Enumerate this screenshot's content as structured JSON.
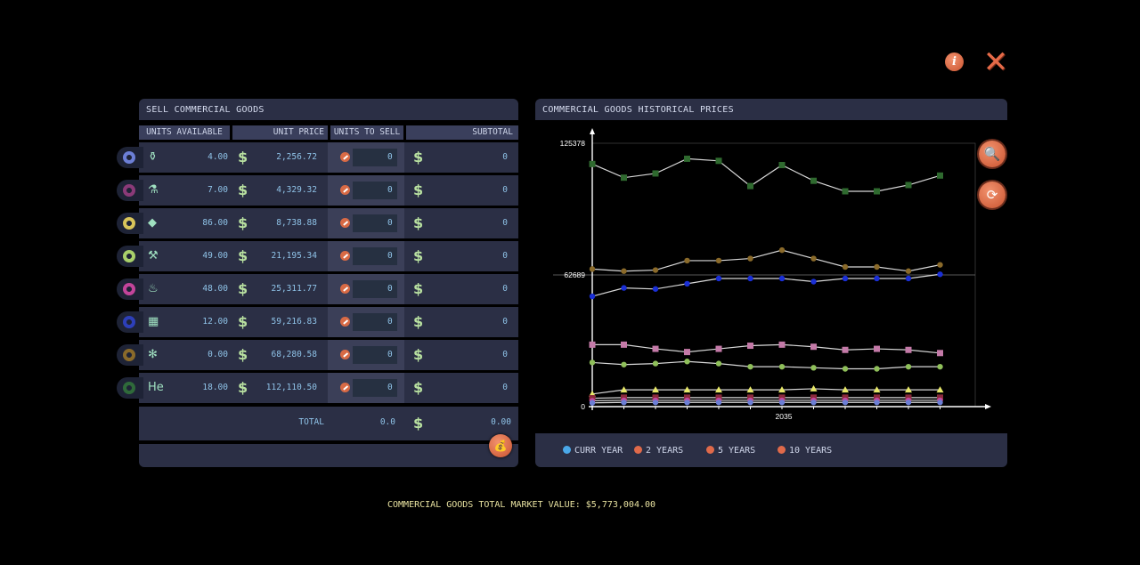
{
  "top_icons": {
    "info": "i",
    "close": "✕"
  },
  "sell_panel": {
    "title": "SELL COMMERCIAL GOODS",
    "headers": {
      "units_available": "UNITS AVAILABLE",
      "unit_price": "UNIT PRICE",
      "units_to_sell": "UNITS TO SELL",
      "subtotal": "SUBTOTAL"
    },
    "currency_symbol": "$",
    "rows": [
      {
        "tab_color": "#6c7fd6",
        "icon": "bottle-icon",
        "glyph": "⚱",
        "units": "4.00",
        "price": "2,256.72",
        "to_sell": "0",
        "subtotal": "0"
      },
      {
        "tab_color": "#8a3a78",
        "icon": "flask-icon",
        "glyph": "⚗",
        "units": "7.00",
        "price": "4,329.32",
        "to_sell": "0",
        "subtotal": "0"
      },
      {
        "tab_color": "#d8c45a",
        "icon": "gem-icon",
        "glyph": "◆",
        "units": "86.00",
        "price": "8,738.88",
        "to_sell": "0",
        "subtotal": "0"
      },
      {
        "tab_color": "#a8d06a",
        "icon": "microscope-icon",
        "glyph": "⚒",
        "units": "49.00",
        "price": "21,195.34",
        "to_sell": "0",
        "subtotal": "0"
      },
      {
        "tab_color": "#c2449a",
        "icon": "spray-icon",
        "glyph": "♨",
        "units": "48.00",
        "price": "25,311.77",
        "to_sell": "0",
        "subtotal": "0"
      },
      {
        "tab_color": "#2d3fb8",
        "icon": "chip-icon",
        "glyph": "▦",
        "units": "12.00",
        "price": "59,216.83",
        "to_sell": "0",
        "subtotal": "0"
      },
      {
        "tab_color": "#8a6a2a",
        "icon": "molecule-icon",
        "glyph": "✻",
        "units": "0.00",
        "price": "68,280.58",
        "to_sell": "0",
        "subtotal": "0"
      },
      {
        "tab_color": "#2f6a3a",
        "icon": "element-icon",
        "glyph": "He",
        "units": "18.00",
        "price": "112,110.50",
        "to_sell": "0",
        "subtotal": "0"
      }
    ],
    "total_label": "TOTAL",
    "total_units": "0.0",
    "total_value": "0.00"
  },
  "chart_panel": {
    "title": "COMMERCIAL GOODS HISTORICAL PRICES",
    "legend": [
      {
        "label": "CURR YEAR",
        "color": "#4aa8e8"
      },
      {
        "label": "2 YEARS",
        "color": "#e06a4a"
      },
      {
        "label": "5 YEARS",
        "color": "#e06a4a"
      },
      {
        "label": "10 YEARS",
        "color": "#e06a4a"
      }
    ]
  },
  "chart_data": {
    "type": "line",
    "ylim": [
      0,
      125378
    ],
    "y_ticks": [
      "125378",
      "62689",
      "0"
    ],
    "x_tick_label": "2035",
    "x": [
      1,
      2,
      3,
      4,
      5,
      6,
      7,
      8,
      9,
      10,
      11,
      12
    ],
    "series": [
      {
        "color": "#2f6a2f",
        "marker": "square",
        "values": [
          115500,
          109000,
          111000,
          118000,
          117000,
          105000,
          115000,
          107500,
          102500,
          102500,
          105500,
          110000
        ]
      },
      {
        "color": "#8a6a2a",
        "marker": "circle",
        "values": [
          65500,
          64500,
          65000,
          69500,
          69500,
          70500,
          74500,
          70500,
          66500,
          66500,
          64500,
          67500
        ]
      },
      {
        "color": "#1a2fd6",
        "marker": "circle",
        "values": [
          52500,
          56500,
          56000,
          58500,
          61000,
          61000,
          61000,
          59500,
          61000,
          61000,
          61000,
          63000
        ]
      },
      {
        "color": "#c47aa8",
        "marker": "square",
        "values": [
          29500,
          29500,
          27500,
          26000,
          27500,
          29000,
          29500,
          28500,
          27000,
          27500,
          27000,
          25500
        ]
      },
      {
        "color": "#8fbf5a",
        "marker": "circle",
        "values": [
          21000,
          20000,
          20500,
          21500,
          20500,
          19000,
          19000,
          18500,
          18000,
          18000,
          19000,
          19000
        ]
      },
      {
        "color": "#e8e86a",
        "marker": "triangle",
        "values": [
          6000,
          8000,
          8000,
          8000,
          8000,
          8000,
          8000,
          8500,
          8000,
          8000,
          8000,
          8000
        ]
      },
      {
        "color": "#8a2a3a",
        "marker": "square",
        "values": [
          4000,
          4300,
          4300,
          4300,
          4300,
          4300,
          4300,
          4300,
          4300,
          4300,
          4300,
          4300
        ]
      },
      {
        "color": "#c2449a",
        "marker": "circle",
        "values": [
          2800,
          3000,
          3000,
          3000,
          3000,
          3000,
          3000,
          3000,
          3000,
          3000,
          3000,
          3000
        ]
      },
      {
        "color": "#6c7fd6",
        "marker": "circle",
        "values": [
          1800,
          2000,
          2000,
          2000,
          2000,
          2000,
          2000,
          2000,
          2000,
          2000,
          2000,
          2000
        ]
      }
    ]
  },
  "market_value_text": "COMMERCIAL GOODS TOTAL MARKET VALUE: $5,773,004.00"
}
